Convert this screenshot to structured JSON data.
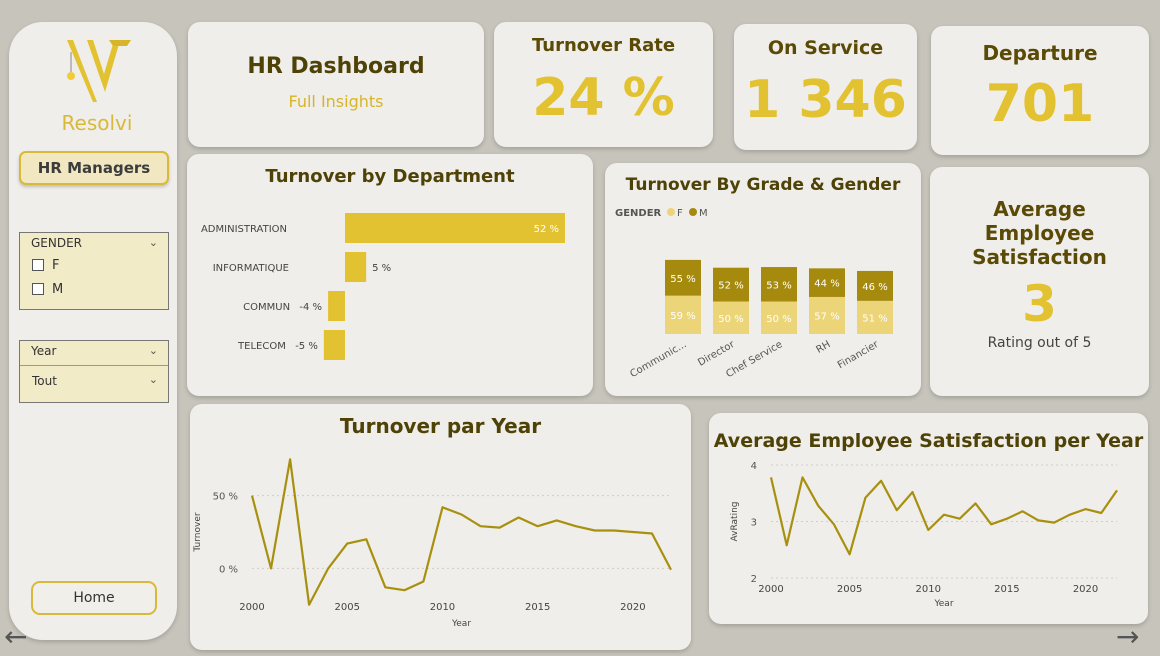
{
  "sidebar": {
    "logo_text": "Resolvi",
    "hr_managers_label": "HR Managers",
    "gender_slicer": {
      "title": "GENDER",
      "options": [
        "F",
        "M"
      ]
    },
    "year_slicer": {
      "title": "Year",
      "selected": "Tout"
    },
    "home_label": "Home"
  },
  "header": {
    "title": "HR Dashboard",
    "subtitle": "Full Insights"
  },
  "kpis": {
    "turnover_rate": {
      "title": "Turnover Rate",
      "value": "24 %"
    },
    "on_service": {
      "title": "On Service",
      "value": "1 346"
    },
    "departure": {
      "title": "Departure",
      "value": "701"
    },
    "satisfaction": {
      "title": "Average Employee Satisfaction",
      "value": "3",
      "caption": "Rating out of 5"
    }
  },
  "colors": {
    "gold": "#e2c231",
    "dark_gold": "#a58a0d",
    "light_gold": "#ecd478",
    "line": "#a8900f",
    "title": "#4e4206"
  },
  "chart_data": [
    {
      "type": "bar",
      "orientation": "horizontal",
      "title": "Turnover by Department",
      "categories": [
        "ADMINISTRATION",
        "INFORMATIQUE",
        "COMMUN",
        "TELECOM"
      ],
      "values": [
        52,
        5,
        -4,
        -5
      ],
      "labels": [
        "52 %",
        "5 %",
        "-4 %",
        "-5 %"
      ]
    },
    {
      "type": "bar",
      "stacked": true,
      "title": "Turnover By Grade & Gender",
      "legend_title": "GENDER",
      "categories": [
        "Communic...",
        "Director",
        "Chef Service",
        "RH",
        "Financier"
      ],
      "series": [
        {
          "name": "F",
          "values": [
            59,
            50,
            50,
            57,
            51
          ],
          "labels": [
            "59 %",
            "50 %",
            "50 %",
            "57 %",
            "51 %"
          ]
        },
        {
          "name": "M",
          "values": [
            55,
            52,
            53,
            44,
            46
          ],
          "labels": [
            "55 %",
            "52 %",
            "53 %",
            "44 %",
            "46 %"
          ]
        }
      ]
    },
    {
      "type": "line",
      "title": "Turnover par Year",
      "xlabel": "Year",
      "ylabel": "Turnover",
      "x": [
        2000,
        2001,
        2002,
        2003,
        2004,
        2005,
        2006,
        2007,
        2008,
        2009,
        2010,
        2011,
        2012,
        2013,
        2014,
        2015,
        2016,
        2017,
        2018,
        2019,
        2020,
        2021,
        2022
      ],
      "y": [
        50,
        0,
        75,
        -25,
        0,
        17,
        20,
        -13,
        -15,
        -9,
        42,
        37,
        29,
        28,
        35,
        29,
        33,
        29,
        26,
        26,
        25,
        24,
        -1
      ],
      "yticks": [
        0,
        50
      ],
      "ytick_labels": [
        "0 %",
        "50 %"
      ],
      "xticks": [
        2000,
        2005,
        2010,
        2015,
        2020
      ],
      "ylim": [
        -30,
        80
      ]
    },
    {
      "type": "line",
      "title": "Average Employee Satisfaction per Year",
      "xlabel": "Year",
      "ylabel": "AvRating",
      "x": [
        2000,
        2001,
        2002,
        2003,
        2004,
        2005,
        2006,
        2007,
        2008,
        2009,
        2010,
        2011,
        2012,
        2013,
        2014,
        2015,
        2016,
        2017,
        2018,
        2019,
        2020,
        2021,
        2022
      ],
      "y": [
        3.78,
        2.58,
        3.78,
        3.28,
        2.95,
        2.42,
        3.42,
        3.72,
        3.2,
        3.52,
        2.85,
        3.12,
        3.05,
        3.32,
        2.95,
        3.05,
        3.18,
        3.02,
        2.98,
        3.12,
        3.22,
        3.15,
        3.55
      ],
      "yticks": [
        2,
        3,
        4
      ],
      "xticks": [
        2000,
        2005,
        2010,
        2015,
        2020
      ],
      "ylim": [
        2,
        4
      ]
    }
  ]
}
